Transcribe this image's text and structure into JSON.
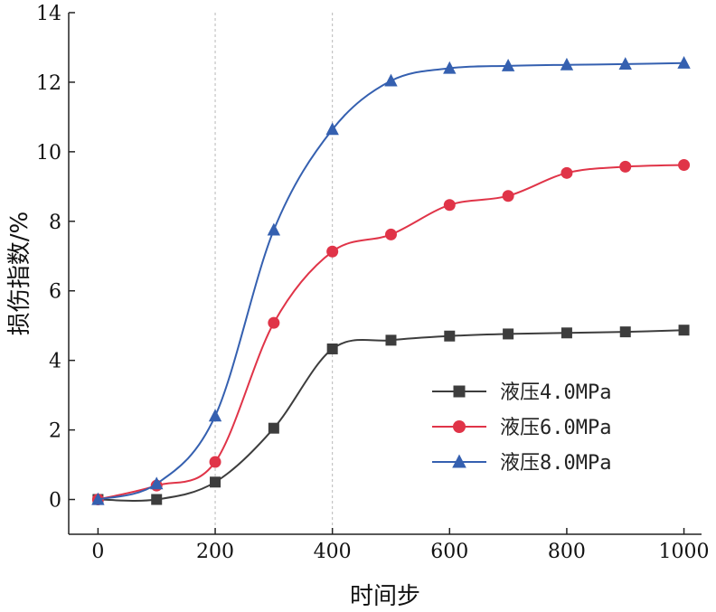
{
  "chart_data": {
    "type": "line",
    "title": "",
    "xlabel": "时间步",
    "ylabel": "损伤指数/%",
    "xlim": [
      -50,
      1030
    ],
    "ylim": [
      -1,
      14
    ],
    "x_ticks": [
      0,
      200,
      400,
      600,
      800,
      1000
    ],
    "y_ticks": [
      0,
      2,
      4,
      6,
      8,
      10,
      12,
      14
    ],
    "vertical_reference_lines": [
      200,
      400
    ],
    "grid": false,
    "legend_position": "right",
    "x": [
      0,
      100,
      200,
      300,
      400,
      500,
      600,
      700,
      800,
      900,
      1000
    ],
    "series": [
      {
        "name": "液压4.0MPa",
        "color": "#3d3d3d",
        "marker": "square",
        "values": [
          0.0,
          0.0,
          0.5,
          2.05,
          4.33,
          4.58,
          4.7,
          4.76,
          4.79,
          4.82,
          4.87
        ]
      },
      {
        "name": "液压6.0MPa",
        "color": "#e03448",
        "marker": "circle",
        "values": [
          0.0,
          0.4,
          1.08,
          5.08,
          7.13,
          7.62,
          8.47,
          8.73,
          9.39,
          9.57,
          9.62
        ]
      },
      {
        "name": "液压8.0MPa",
        "color": "#3560b0",
        "marker": "triangle",
        "values": [
          0.0,
          0.45,
          2.4,
          7.75,
          10.64,
          12.04,
          12.4,
          12.47,
          12.5,
          12.52,
          12.55
        ]
      }
    ]
  }
}
